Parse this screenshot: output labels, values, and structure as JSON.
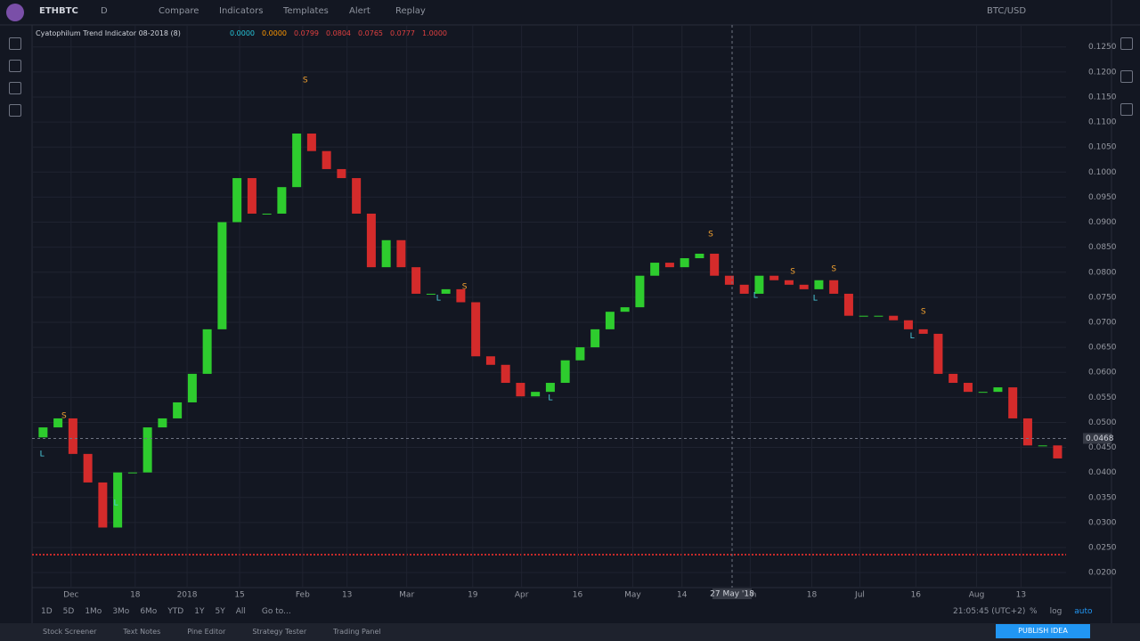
{
  "toolbar": {
    "symbol": "ETHBTC",
    "interval": "D",
    "items": [
      "Compare",
      "Indicators",
      "Templates",
      "Alert",
      "Replay"
    ],
    "currency": "BTC/USD"
  },
  "indicator": {
    "name": "Cyatophilum Trend Indicator 08-2018 (8)",
    "values": [
      "0.0000",
      "0.0000",
      "0.0799",
      "0.0804",
      "0.0765",
      "0.0777",
      "1.0000"
    ]
  },
  "chart_data": {
    "type": "candlestick",
    "up_color": "#2ecc2e",
    "down_color": "#d42b2b",
    "x": [
      2,
      6,
      10,
      14,
      18,
      22,
      26,
      30,
      34,
      38,
      42,
      46,
      50,
      54,
      58,
      62,
      66,
      70,
      74,
      78,
      82,
      86,
      90,
      94,
      98,
      102,
      106,
      110,
      114,
      118,
      122,
      126,
      130,
      134,
      138,
      142,
      146,
      150,
      154,
      158,
      162,
      166,
      170,
      174,
      178,
      182,
      186,
      190,
      194,
      198,
      202,
      206,
      210,
      214,
      218,
      222,
      226,
      230,
      234,
      238,
      242,
      246,
      250,
      254,
      258,
      262,
      266,
      270,
      274
    ],
    "open": [
      0.047,
      0.049,
      0.0508,
      0.0437,
      0.038,
      0.029,
      0.04,
      0.04,
      0.049,
      0.0508,
      0.054,
      0.0597,
      0.0686,
      0.09,
      0.0988,
      0.0917,
      0.0917,
      0.097,
      0.1077,
      0.1042,
      0.1006,
      0.0988,
      0.0917,
      0.081,
      0.0864,
      0.081,
      0.0757,
      0.0757,
      0.0766,
      0.074,
      0.0632,
      0.0615,
      0.0579,
      0.0552,
      0.0561,
      0.0579,
      0.0624,
      0.065,
      0.0686,
      0.0721,
      0.073,
      0.0793,
      0.0819,
      0.081,
      0.0828,
      0.0837,
      0.0793,
      0.0775,
      0.0757,
      0.0793,
      0.0784,
      0.0775,
      0.0766,
      0.0784,
      0.0757,
      0.0713,
      0.0713,
      0.0713,
      0.0704,
      0.0686,
      0.0677,
      0.0597,
      0.0579,
      0.0561,
      0.0561,
      0.057,
      0.0508,
      0.0454,
      0.0454
    ],
    "close": [
      0.049,
      0.0508,
      0.0437,
      0.038,
      0.029,
      0.04,
      0.04,
      0.049,
      0.0508,
      0.054,
      0.0597,
      0.0686,
      0.09,
      0.0988,
      0.0917,
      0.0917,
      0.097,
      0.1077,
      0.1042,
      0.1006,
      0.0988,
      0.0917,
      0.081,
      0.0864,
      0.081,
      0.0757,
      0.0757,
      0.0766,
      0.074,
      0.0632,
      0.0615,
      0.0579,
      0.0552,
      0.0561,
      0.0579,
      0.0624,
      0.065,
      0.0686,
      0.0721,
      0.073,
      0.0793,
      0.0819,
      0.081,
      0.0828,
      0.0837,
      0.0793,
      0.0775,
      0.0757,
      0.0793,
      0.0784,
      0.0775,
      0.0766,
      0.0784,
      0.0757,
      0.0713,
      0.0713,
      0.0713,
      0.0704,
      0.0686,
      0.0677,
      0.0597,
      0.0579,
      0.0561,
      0.0561,
      0.057,
      0.0508,
      0.0454,
      0.0454,
      0.0428
    ],
    "annotations": [
      {
        "text": "S",
        "x": 72.3,
        "y": 0.1184
      },
      {
        "text": "S",
        "x": 115,
        "y": 0.0771
      },
      {
        "text": "S",
        "x": 181,
        "y": 0.0876
      },
      {
        "text": "S",
        "x": 203,
        "y": 0.0801
      },
      {
        "text": "S",
        "x": 214,
        "y": 0.0807
      },
      {
        "text": "S",
        "x": 238,
        "y": 0.0721
      },
      {
        "text": "S",
        "x": 7.6,
        "y": 0.0513
      },
      {
        "text": "L",
        "x": 1.7,
        "y": 0.0437
      },
      {
        "text": "L",
        "x": 21.5,
        "y": 0.0339
      },
      {
        "text": "L",
        "x": 108,
        "y": 0.0748
      },
      {
        "text": "L",
        "x": 138,
        "y": 0.0549
      },
      {
        "text": "L",
        "x": 193,
        "y": 0.0753
      },
      {
        "text": "L",
        "x": 209,
        "y": 0.0748
      },
      {
        "text": "L",
        "x": 235,
        "y": 0.0672
      }
    ],
    "xlim": [
      0,
      277
    ],
    "ylim": [
      0.017,
      0.1294
    ],
    "xticks": [
      {
        "value": 9.5,
        "label": "Dec"
      },
      {
        "value": 26.7,
        "label": "18"
      },
      {
        "value": 40.6,
        "label": "2018"
      },
      {
        "value": 54.7,
        "label": "15"
      },
      {
        "value": 71.6,
        "label": "Feb"
      },
      {
        "value": 83.5,
        "label": "13"
      },
      {
        "value": 99.5,
        "label": "Mar"
      },
      {
        "value": 117.2,
        "label": "19"
      },
      {
        "value": 130.3,
        "label": "Apr"
      },
      {
        "value": 145.3,
        "label": "16"
      },
      {
        "value": 160.1,
        "label": "May"
      },
      {
        "value": 173.3,
        "label": "14"
      },
      {
        "value": 191.6,
        "label": "Jun"
      },
      {
        "value": 208.1,
        "label": "18"
      },
      {
        "value": 221,
        "label": "Jul"
      },
      {
        "value": 236,
        "label": "16"
      },
      {
        "value": 252.3,
        "label": "Aug"
      },
      {
        "value": 264.2,
        "label": "13"
      }
    ],
    "yticks": [
      {
        "value": 0.02,
        "label": "0.0200"
      },
      {
        "value": 0.025,
        "label": "0.0250"
      },
      {
        "value": 0.03,
        "label": "0.0300"
      },
      {
        "value": 0.035,
        "label": "0.0350"
      },
      {
        "value": 0.04,
        "label": "0.0400"
      },
      {
        "value": 0.045,
        "label": "0.0450"
      },
      {
        "value": 0.05,
        "label": "0.0500"
      },
      {
        "value": 0.055,
        "label": "0.0550"
      },
      {
        "value": 0.06,
        "label": "0.0600"
      },
      {
        "value": 0.065,
        "label": "0.0650"
      },
      {
        "value": 0.07,
        "label": "0.0700"
      },
      {
        "value": 0.075,
        "label": "0.0750"
      },
      {
        "value": 0.08,
        "label": "0.0800"
      },
      {
        "value": 0.085,
        "label": "0.0850"
      },
      {
        "value": 0.09,
        "label": "0.0900"
      },
      {
        "value": 0.095,
        "label": "0.0950"
      },
      {
        "value": 0.1,
        "label": "0.1000"
      },
      {
        "value": 0.105,
        "label": "0.1050"
      },
      {
        "value": 0.11,
        "label": "0.1100"
      },
      {
        "value": 0.115,
        "label": "0.1150"
      },
      {
        "value": 0.12,
        "label": "0.1200"
      },
      {
        "value": 0.125,
        "label": "0.1250"
      }
    ],
    "grid": true,
    "crosshair": {
      "price": {
        "value": 0.0468,
        "label": "0.0468"
      },
      "date": "27 May '18"
    }
  },
  "footer": {
    "ranges": [
      "1D",
      "5D",
      "1Mo",
      "3Mo",
      "6Mo",
      "YTD",
      "1Y",
      "5Y",
      "All"
    ],
    "goto": "Go to...",
    "time": "21:05:45 (UTC+2)",
    "options": [
      "%",
      "log",
      "auto"
    ]
  },
  "bottom_tabs": [
    "Stock Screener",
    "Text Notes",
    "Pine Editor",
    "Strategy Tester",
    "Trading Panel"
  ],
  "publish": "PUBLISH IDEA"
}
